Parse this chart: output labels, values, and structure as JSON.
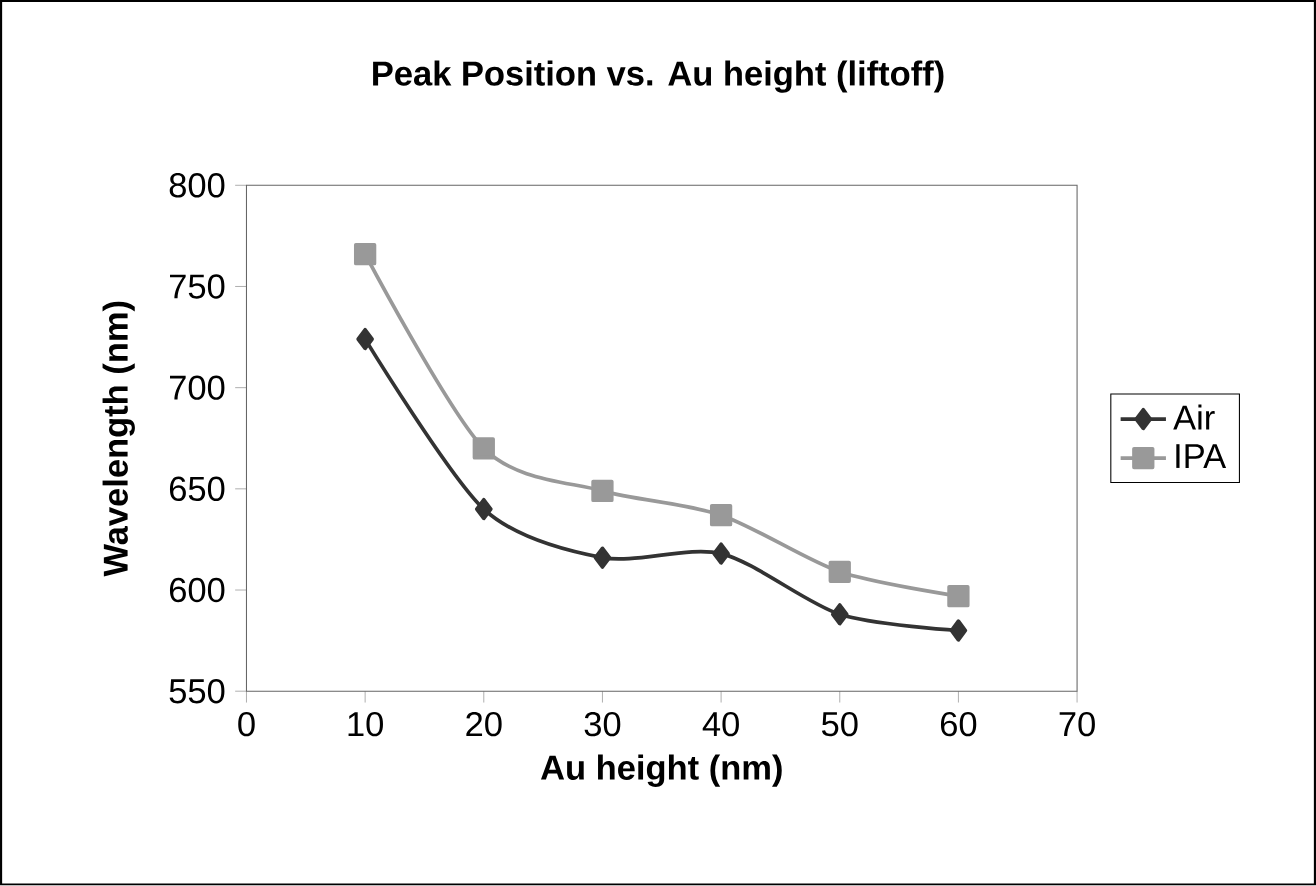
{
  "chart_data": {
    "type": "line",
    "title": "Peak Position vs. Au height (liftoff)",
    "xlabel": "Au height (nm)",
    "ylabel": "Wavelength (nm)",
    "x": [
      10,
      20,
      30,
      40,
      50,
      60
    ],
    "series": [
      {
        "name": "Air",
        "color": "#333333",
        "marker": "diamond",
        "values": [
          724,
          640,
          616,
          618,
          588,
          580
        ]
      },
      {
        "name": "IPA",
        "color": "#999999",
        "marker": "square",
        "values": [
          766,
          670,
          649,
          637,
          609,
          597
        ]
      }
    ],
    "xlim": [
      0,
      70
    ],
    "xticks": [
      0,
      10,
      20,
      30,
      40,
      50,
      60,
      70
    ],
    "ylim": [
      550,
      800
    ],
    "yticks": [
      550,
      600,
      650,
      700,
      750,
      800
    ],
    "grid": false,
    "legend": "right"
  }
}
